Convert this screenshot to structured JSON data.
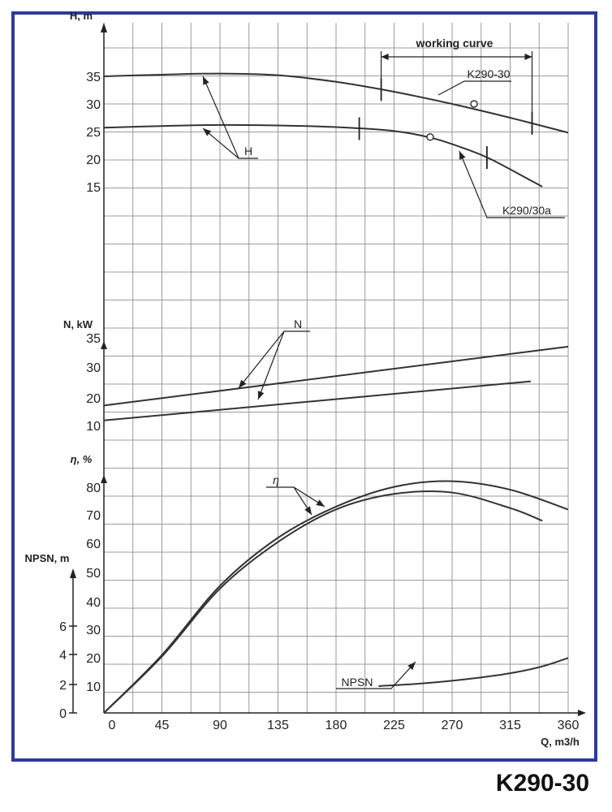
{
  "caption": "K290-30",
  "colors": {
    "frame": "#2d3a9a",
    "grid": "#9a9a9a",
    "curve": "#333333"
  },
  "chart_data": {
    "type": "line",
    "title": "",
    "xlabel": "Q, m3/h",
    "xlim": [
      0,
      360
    ],
    "x_ticks": [
      "0",
      "45",
      "90",
      "135",
      "180",
      "225",
      "270",
      "315",
      "360"
    ],
    "grid": true,
    "panels": [
      {
        "name": "head",
        "ylabel": "H, m",
        "y_ticks": [
          "35",
          "30",
          "25",
          "20",
          "15"
        ],
        "series": [
          {
            "name": "K290-30",
            "x": [
              0,
              45,
              90,
              135,
              180,
              225,
              270,
              315,
              360
            ],
            "y": [
              35,
              35.3,
              35.5,
              35.2,
              34,
              32.2,
              30,
              27.5,
              24.8
            ]
          },
          {
            "name": "K290/30a",
            "x": [
              0,
              45,
              90,
              135,
              180,
              225,
              255,
              280,
              300,
              340
            ],
            "y": [
              25.7,
              26,
              26.2,
              26.1,
              25.8,
              25.1,
              23.8,
              21.9,
              20,
              15
            ]
          }
        ],
        "operating_points": [
          {
            "series": "K290-30",
            "x": 287,
            "y": 30
          },
          {
            "series": "K290/30a",
            "x": 253,
            "y": 24
          }
        ],
        "working_range": [
          {
            "series": "K290-30",
            "x": [
              215,
              332
            ]
          },
          {
            "series": "K290/30a",
            "x": [
              198,
              297
            ]
          }
        ],
        "annotations": [
          "working curve",
          "K290-30",
          "K290/30a",
          "H"
        ]
      },
      {
        "name": "power",
        "ylabel": "N, kW",
        "y_ticks": [
          "35",
          "30",
          "20",
          "10"
        ],
        "series": [
          {
            "name": "N",
            "x": [
              0,
              360
            ],
            "y": [
              17.5,
              37.2
            ]
          },
          {
            "name": "N",
            "x": [
              0,
              331
            ],
            "y": [
              12.5,
              25.6
            ]
          }
        ],
        "annotations": [
          "N"
        ]
      },
      {
        "name": "efficiency",
        "ylabel": "η, %",
        "y_ticks": [
          "80",
          "70",
          "60",
          "50",
          "40",
          "30",
          "20",
          "10"
        ],
        "series": [
          {
            "name": "η",
            "x": [
              0,
              45,
              90,
              135,
              180,
              225,
              270,
              315,
              360
            ],
            "y": [
              0,
              20.5,
              45,
              62,
              73,
              80,
              82,
              79,
              72
            ]
          },
          {
            "name": "η",
            "x": [
              0,
              45,
              90,
              135,
              180,
              225,
              270,
              315,
              340
            ],
            "y": [
              0,
              20,
              44,
              60.5,
              72,
              77.5,
              78,
              72.5,
              68
            ]
          }
        ],
        "annotations": [
          "η"
        ]
      },
      {
        "name": "npsh",
        "ylabel": "NPSN, m",
        "y_ticks": [
          "6",
          "4",
          "2",
          "0"
        ],
        "series": [
          {
            "name": "NPSN",
            "x": [
              213,
              245,
              280,
              315,
              340,
              360
            ],
            "y": [
              1.76,
              1.92,
              2.2,
              2.6,
              3.05,
              3.6
            ]
          }
        ],
        "annotations": [
          "NPSN"
        ]
      }
    ]
  }
}
